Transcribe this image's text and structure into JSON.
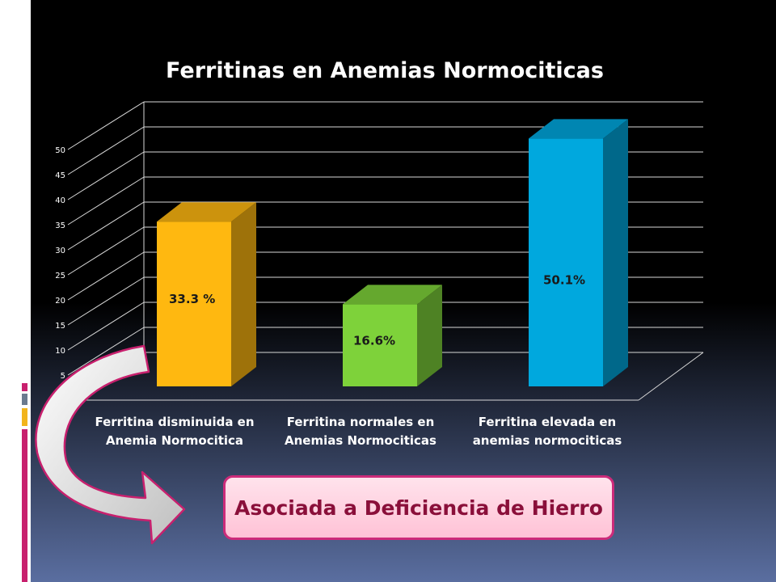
{
  "chart_data": {
    "type": "bar",
    "title": "Ferritinas en Anemias Normociticas",
    "categories": [
      [
        "Ferritina disminuida en",
        "Anemia Normocitica"
      ],
      [
        "Ferritina normales en",
        "Anemias Normociticas"
      ],
      [
        "Ferritina elevada en",
        "anemias normociticas"
      ]
    ],
    "values": [
      33.3,
      16.6,
      50.1
    ],
    "data_labels": [
      "33.3 %",
      "16.6%",
      "50.1%"
    ],
    "bar_colors": [
      "#ffb810",
      "#7ed23a",
      "#00a8de"
    ],
    "y_ticks": [
      "5",
      "10",
      "15",
      "20",
      "25",
      "30",
      "35",
      "40",
      "45",
      "50"
    ],
    "ylim": [
      0,
      50
    ],
    "grid": true,
    "legend": "none",
    "xlabel": "",
    "ylabel": ""
  },
  "callout": {
    "text": "Asociada a Deficiencia de Hierro",
    "arrow_color": "#d9d9d9",
    "border_color": "#cc2b7a"
  }
}
